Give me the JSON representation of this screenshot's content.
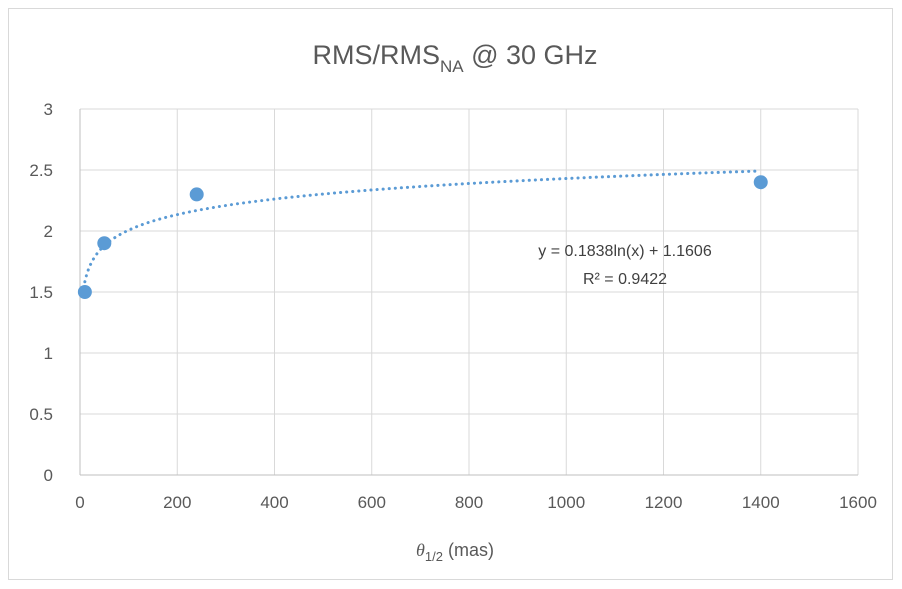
{
  "chart_data": {
    "type": "scatter",
    "title": {
      "main": "RMS/RMS",
      "sub": "NA",
      "suffix": " @ 30 GHz"
    },
    "xlabel": {
      "symbol": "θ",
      "sub": "1/2",
      "rest": " (mas)"
    },
    "ylabel": "",
    "xlim": [
      0,
      1600
    ],
    "ylim": [
      0,
      3
    ],
    "x_ticks": [
      0,
      200,
      400,
      600,
      800,
      1000,
      1200,
      1400,
      1600
    ],
    "y_ticks": [
      0,
      0.5,
      1,
      1.5,
      2,
      2.5,
      3
    ],
    "grid": true,
    "legend": "none",
    "series": [
      {
        "points": [
          {
            "x": 10,
            "y": 1.5
          },
          {
            "x": 50,
            "y": 1.9
          },
          {
            "x": 240,
            "y": 2.3
          },
          {
            "x": 1400,
            "y": 2.4
          }
        ],
        "color": "#5b9bd5"
      }
    ],
    "trendline": {
      "type": "logarithmic",
      "a": 0.1838,
      "b": 1.1606,
      "x_range": [
        10,
        1400
      ],
      "equation": "y = 0.1838ln(x) + 1.1606",
      "r2": "R² = 0.9422",
      "color": "#5b9bd5",
      "style": "dotted"
    }
  }
}
